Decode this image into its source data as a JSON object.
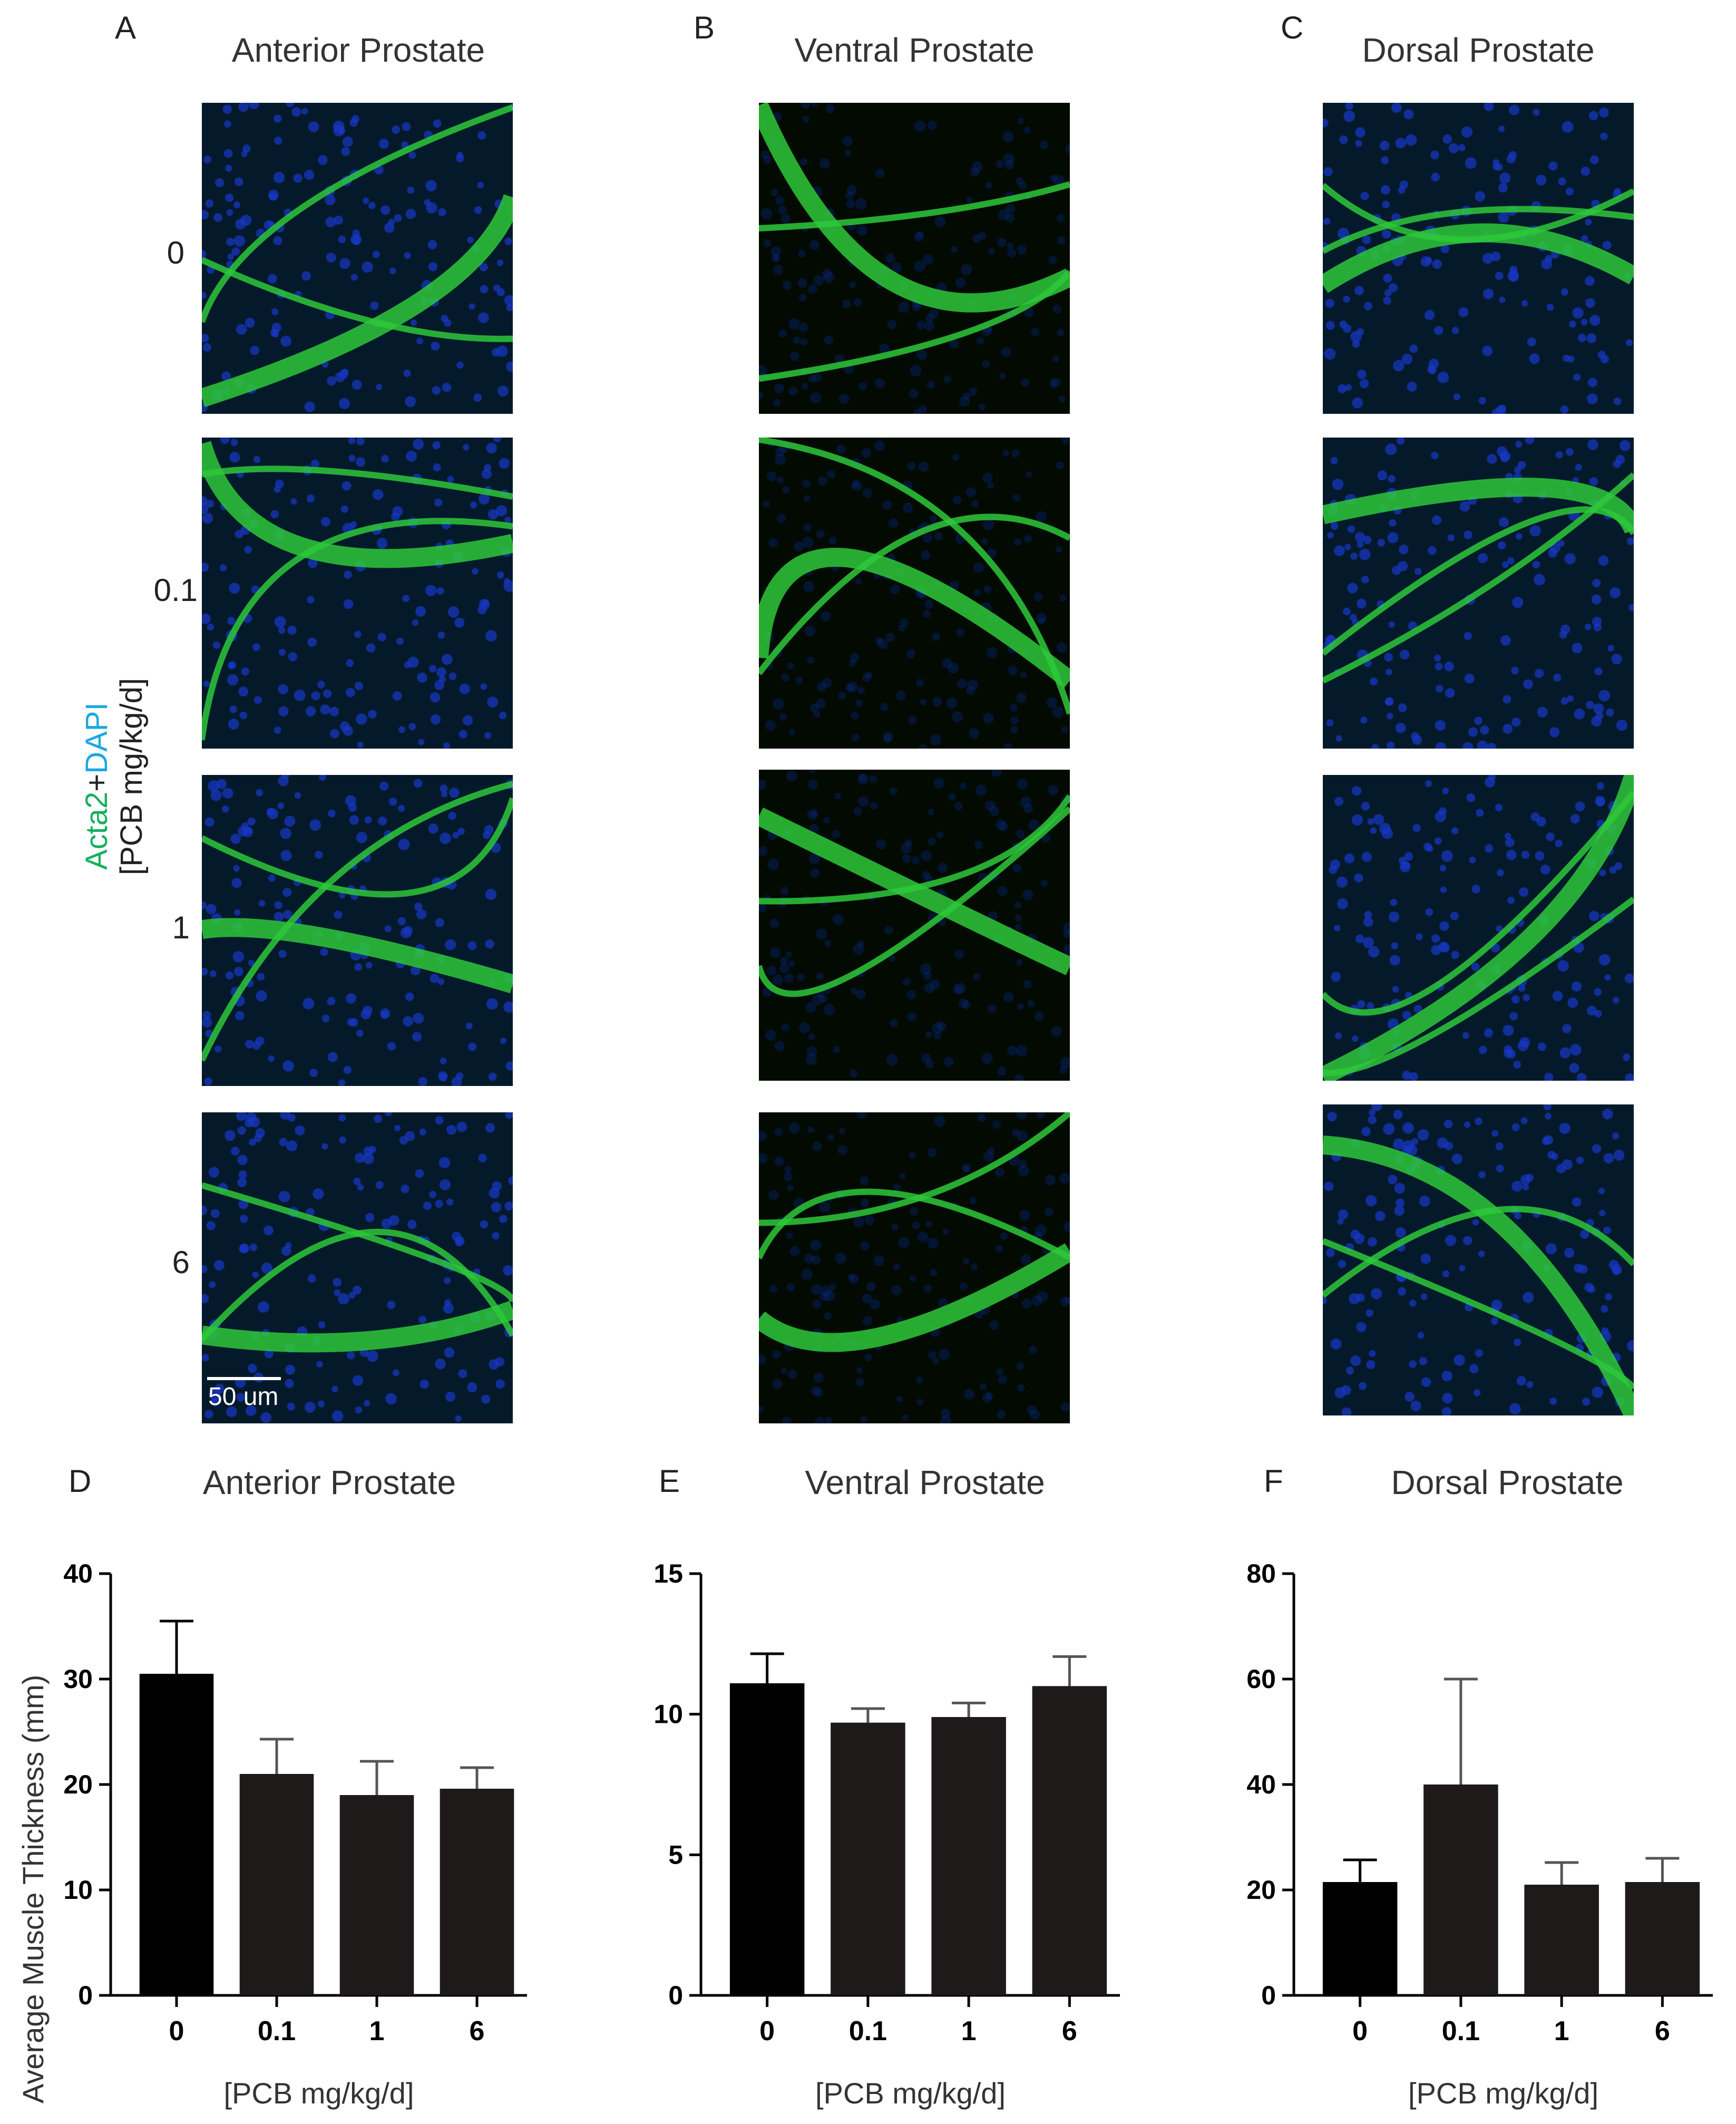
{
  "panel_letters": [
    "A",
    "B",
    "C",
    "D",
    "E",
    "F"
  ],
  "micrograph_titles": [
    "Anterior Prostate",
    "Ventral Prostate",
    "Dorsal Prostate"
  ],
  "doses": [
    "0",
    "0.1",
    "1",
    "6"
  ],
  "stain_label": {
    "green": "Acta2",
    "plus": "+",
    "blue": "DAPI"
  },
  "dose_axis_label": "[PCB mg/kg/d]",
  "scale_bar_label": "50 um",
  "shared_ylabel": "Average Muscle Thickness (mm)",
  "colors": {
    "green": "#17b05e",
    "blue": "#19a9e0",
    "bar_first": "#000000",
    "bar_rest": "#1e1a1a"
  },
  "chart_data": [
    {
      "type": "bar",
      "title": "Anterior Prostate",
      "categories": [
        "0",
        "0.1",
        "1",
        "6"
      ],
      "values": [
        30.5,
        21,
        19,
        19.6
      ],
      "errors": [
        5,
        3.3,
        3.2,
        2
      ],
      "xlabel": "[PCB mg/kg/d]",
      "ylabel": "Average Muscle Thickness (mm)",
      "ylim": [
        0,
        40
      ],
      "yticks": [
        0,
        10,
        20,
        30,
        40
      ]
    },
    {
      "type": "bar",
      "title": "Ventral Prostate",
      "categories": [
        "0",
        "0.1",
        "1",
        "6"
      ],
      "values": [
        11.1,
        9.7,
        9.9,
        11
      ],
      "errors": [
        1.05,
        0.5,
        0.5,
        1.05
      ],
      "xlabel": "[PCB mg/kg/d]",
      "ylabel": "",
      "ylim": [
        0,
        15
      ],
      "yticks": [
        0,
        5,
        10,
        15
      ]
    },
    {
      "type": "bar",
      "title": "Dorsal Prostate",
      "categories": [
        "0",
        "0.1",
        "1",
        "6"
      ],
      "values": [
        21.5,
        40,
        21,
        21.5
      ],
      "errors": [
        4.2,
        20,
        4.2,
        4.5
      ],
      "xlabel": "[PCB mg/kg/d]",
      "ylabel": "",
      "ylim": [
        0,
        80
      ],
      "yticks": [
        0,
        20,
        40,
        60,
        80
      ]
    }
  ]
}
